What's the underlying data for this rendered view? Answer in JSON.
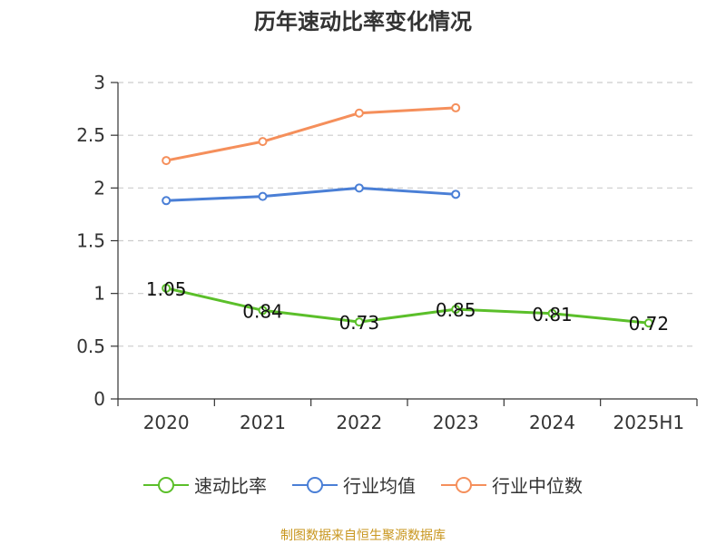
{
  "chart_data": {
    "type": "line",
    "title": "历年速动比率变化情况",
    "categories": [
      "2020",
      "2021",
      "2022",
      "2023",
      "2024",
      "2025H1"
    ],
    "y_ticks": [
      "0",
      "0.5",
      "1",
      "1.5",
      "2",
      "2.5",
      "3"
    ],
    "ylim": [
      0,
      3
    ],
    "grid": true,
    "legend_position": "bottom",
    "series": [
      {
        "name": "速动比率",
        "color": "#5bbf2a",
        "values": [
          1.05,
          0.84,
          0.73,
          0.85,
          0.81,
          0.72
        ],
        "labels": [
          "1.05",
          "0.84",
          "0.73",
          "0.85",
          "0.81",
          "0.72"
        ]
      },
      {
        "name": "行业均值",
        "color": "#4a7fd6",
        "values": [
          1.88,
          1.92,
          2.0,
          1.94,
          null,
          null
        ]
      },
      {
        "name": "行业中位数",
        "color": "#f58f5b",
        "values": [
          2.26,
          2.44,
          2.71,
          2.76,
          null,
          null
        ]
      }
    ]
  },
  "source_note": "制图数据来自恒生聚源数据库"
}
